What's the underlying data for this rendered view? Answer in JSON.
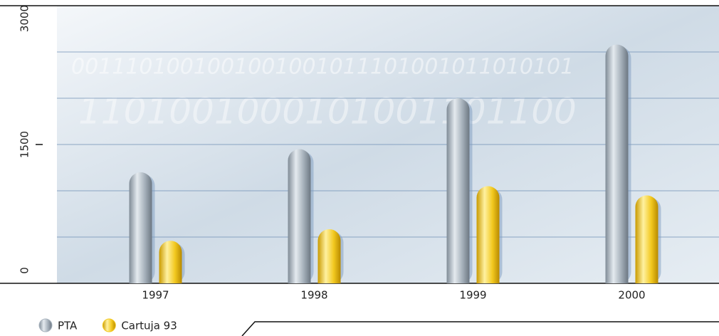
{
  "chart_data": {
    "type": "bar",
    "categories": [
      "1997",
      "1998",
      "1999",
      "2000"
    ],
    "series": [
      {
        "name": "PTA",
        "color": "#a9b4bf",
        "values": [
          1200,
          1450,
          2000,
          2580
        ]
      },
      {
        "name": "Cartuja 93",
        "color": "#f2c81e",
        "values": [
          460,
          585,
          1050,
          950
        ]
      }
    ],
    "ylim": [
      0,
      3000
    ],
    "yticks": [
      0,
      1500,
      3000
    ],
    "grid_lines": [
      500,
      1000,
      1500,
      2000,
      2500
    ],
    "legend": "bottom-left"
  }
}
